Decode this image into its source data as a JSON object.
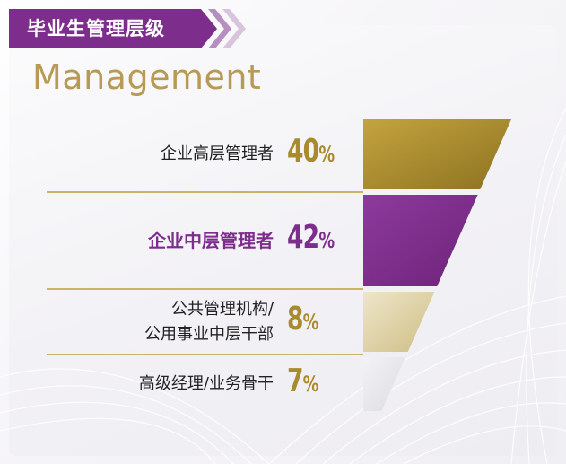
{
  "header": {
    "title": "毕业生管理层级",
    "subtitle": "Management"
  },
  "colors": {
    "accent": "#7d2e8d",
    "gold": "#a88a2f",
    "light_gold": "#ddd1a8",
    "grey": "#e1e0e5"
  },
  "chart_data": {
    "type": "funnel",
    "categories": [
      "企业高层管理者",
      "企业中层管理者",
      "公共管理机构/\n公用事业中层干部",
      "高级经理/业务骨干"
    ],
    "values": [
      40,
      42,
      8,
      7
    ],
    "unit": "%"
  },
  "rows": [
    {
      "label_lines": [
        "企业高层管理者"
      ],
      "value": "40",
      "unit": "%",
      "color": "#a88a2f",
      "highlight": false
    },
    {
      "label_lines": [
        "企业中层管理者"
      ],
      "value": "42",
      "unit": "%",
      "color": "#7d2e8d",
      "highlight": true
    },
    {
      "label_lines": [
        "公共管理机构/",
        "公用事业中层干部"
      ],
      "value": "8",
      "unit": "%",
      "color": "#a88a2f",
      "highlight": false
    },
    {
      "label_lines": [
        "高级经理/业务骨干"
      ],
      "value": "7",
      "unit": "%",
      "color": "#a88a2f",
      "highlight": false
    }
  ]
}
